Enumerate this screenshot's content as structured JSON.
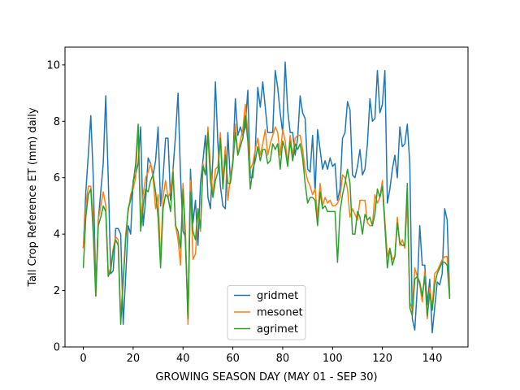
{
  "chart_data": {
    "type": "line",
    "xlabel": "GROWING SEASON DAY (MAY 01 - SEP 30)",
    "ylabel": "Tall Crop Reference ET (mm) daily",
    "x": [
      0,
      1,
      2,
      3,
      4,
      5,
      6,
      7,
      8,
      9,
      10,
      11,
      12,
      13,
      14,
      15,
      16,
      17,
      18,
      19,
      20,
      21,
      22,
      23,
      24,
      25,
      26,
      27,
      28,
      29,
      30,
      31,
      32,
      33,
      34,
      35,
      36,
      37,
      38,
      39,
      40,
      41,
      42,
      43,
      44,
      45,
      46,
      47,
      48,
      49,
      50,
      51,
      52,
      53,
      54,
      55,
      56,
      57,
      58,
      59,
      60,
      61,
      62,
      63,
      64,
      65,
      66,
      67,
      68,
      69,
      70,
      71,
      72,
      73,
      74,
      75,
      76,
      77,
      78,
      79,
      80,
      81,
      82,
      83,
      84,
      85,
      86,
      87,
      88,
      89,
      90,
      91,
      92,
      93,
      94,
      95,
      96,
      97,
      98,
      99,
      100,
      101,
      102,
      103,
      104,
      105,
      106,
      107,
      108,
      109,
      110,
      111,
      112,
      113,
      114,
      115,
      116,
      117,
      118,
      119,
      120,
      121,
      122,
      123,
      124,
      125,
      126,
      127,
      128,
      129,
      130,
      131,
      132,
      133,
      134,
      135,
      136,
      137,
      138,
      139,
      140,
      141,
      142,
      143,
      144,
      145,
      146,
      147
    ],
    "series": [
      {
        "name": "gridmet",
        "color": "#1f77b4",
        "values": [
          3.5,
          5.5,
          6.8,
          8.2,
          6.0,
          2.0,
          4.5,
          5.5,
          6.5,
          8.9,
          6.0,
          2.6,
          2.7,
          4.2,
          4.2,
          4.0,
          0.8,
          2.5,
          4.3,
          4.0,
          5.9,
          6.1,
          6.5,
          7.8,
          4.3,
          5.2,
          6.7,
          6.5,
          6.1,
          6.6,
          7.8,
          5.0,
          6.0,
          7.4,
          7.4,
          5.2,
          6.3,
          7.5,
          9.0,
          6.1,
          4.1,
          3.9,
          1.0,
          6.3,
          4.4,
          5.2,
          3.6,
          5.8,
          6.6,
          7.5,
          5.3,
          4.9,
          6.7,
          9.4,
          7.2,
          5.7,
          5.0,
          4.9,
          7.6,
          5.9,
          6.6,
          8.8,
          7.5,
          7.8,
          7.5,
          7.8,
          9.1,
          6.0,
          6.0,
          7.0,
          9.2,
          8.5,
          9.4,
          8.5,
          7.6,
          7.6,
          7.6,
          9.8,
          9.2,
          8.3,
          7.6,
          10.1,
          8.4,
          7.6,
          7.6,
          6.8,
          7.4,
          8.9,
          8.3,
          8.1,
          6.3,
          6.2,
          7.5,
          5.5,
          7.7,
          7.0,
          6.3,
          6.6,
          6.3,
          6.7,
          6.4,
          6.5,
          5.2,
          5.6,
          7.4,
          7.6,
          8.7,
          8.4,
          6.1,
          6.0,
          6.4,
          7.0,
          6.1,
          6.3,
          7.2,
          8.8,
          8.0,
          8.1,
          9.8,
          8.3,
          8.6,
          9.8,
          5.1,
          5.6,
          6.3,
          6.8,
          6.0,
          7.8,
          7.1,
          7.2,
          7.9,
          6.5,
          1.0,
          0.6,
          2.1,
          4.3,
          2.9,
          2.9,
          1.5,
          2.4,
          0.5,
          1.4,
          2.3,
          2.2,
          2.6,
          4.9,
          4.5,
          1.8
        ]
      },
      {
        "name": "mesonet",
        "color": "#ff7f0e",
        "values": [
          3.5,
          5.0,
          5.7,
          5.7,
          4.5,
          1.8,
          4.5,
          5.0,
          5.5,
          5.0,
          2.6,
          2.8,
          3.5,
          3.9,
          3.8,
          1.0,
          2.4,
          4.0,
          4.8,
          5.4,
          5.6,
          6.0,
          7.8,
          4.5,
          5.4,
          6.0,
          6.2,
          6.5,
          6.0,
          4.9,
          5.4,
          3.0,
          5.3,
          5.9,
          5.3,
          5.5,
          6.3,
          4.3,
          3.8,
          2.9,
          5.8,
          4.0,
          0.8,
          5.9,
          3.1,
          3.3,
          4.8,
          4.1,
          6.5,
          6.1,
          7.8,
          6.4,
          5.4,
          6.3,
          6.4,
          7.6,
          5.9,
          7.1,
          5.2,
          6.0,
          6.6,
          7.9,
          6.8,
          7.3,
          7.7,
          8.6,
          7.6,
          6.3,
          6.5,
          7.0,
          7.4,
          6.8,
          7.2,
          7.7,
          6.8,
          7.2,
          7.5,
          7.8,
          7.6,
          6.8,
          7.7,
          7.3,
          6.5,
          7.5,
          6.8,
          7.4,
          7.5,
          7.5,
          7.0,
          6.3,
          5.9,
          5.7,
          5.4,
          5.6,
          4.6,
          5.8,
          5.0,
          5.3,
          5.1,
          5.2,
          5.0,
          5.0,
          5.1,
          5.3,
          6.1,
          6.0,
          5.6,
          4.6,
          4.9,
          4.7,
          4.5,
          5.2,
          5.2,
          5.2,
          4.4,
          4.3,
          4.3,
          5.4,
          5.1,
          5.3,
          5.9,
          4.5,
          3.2,
          3.5,
          3.1,
          3.2,
          4.6,
          3.6,
          3.8,
          3.5,
          5.2,
          1.6,
          1.3,
          2.8,
          2.5,
          2.2,
          1.6,
          2.7,
          1.0,
          2.1,
          1.4,
          2.6,
          2.7,
          2.9,
          3.1,
          3.2,
          3.2,
          1.8
        ]
      },
      {
        "name": "agrimet",
        "color": "#2ca02c",
        "values": [
          2.8,
          4.6,
          5.4,
          5.6,
          4.0,
          1.8,
          4.3,
          4.6,
          5.0,
          4.8,
          2.5,
          2.7,
          3.4,
          3.8,
          3.6,
          0.8,
          2.3,
          3.8,
          4.9,
          5.2,
          5.8,
          6.5,
          7.9,
          4.1,
          5.0,
          5.6,
          5.5,
          5.9,
          6.1,
          5.5,
          4.6,
          2.8,
          4.9,
          5.4,
          5.3,
          4.8,
          6.2,
          4.3,
          4.1,
          3.5,
          5.6,
          3.6,
          1.0,
          5.5,
          4.1,
          3.8,
          4.9,
          4.2,
          6.4,
          6.1,
          7.6,
          5.9,
          5.3,
          5.9,
          6.2,
          7.4,
          5.6,
          6.8,
          5.8,
          5.8,
          6.5,
          7.6,
          6.8,
          7.1,
          7.4,
          8.2,
          7.3,
          5.6,
          6.3,
          6.6,
          7.1,
          6.6,
          7.0,
          7.0,
          6.5,
          6.6,
          7.2,
          7.0,
          7.2,
          6.3,
          7.3,
          7.0,
          6.4,
          7.3,
          6.6,
          7.2,
          7.0,
          7.2,
          6.7,
          5.8,
          5.1,
          5.3,
          5.3,
          5.2,
          4.3,
          5.5,
          4.9,
          5.0,
          4.8,
          4.8,
          4.8,
          4.8,
          3.0,
          4.8,
          5.4,
          5.8,
          6.3,
          5.8,
          4.0,
          4.0,
          4.8,
          4.6,
          4.0,
          4.7,
          4.5,
          4.6,
          4.3,
          4.7,
          5.6,
          5.3,
          5.7,
          4.3,
          2.8,
          3.5,
          2.9,
          3.2,
          4.4,
          3.7,
          3.6,
          3.6,
          5.8,
          1.4,
          1.1,
          2.4,
          2.5,
          2.3,
          1.8,
          2.5,
          1.1,
          1.9,
          1.3,
          2.2,
          2.6,
          2.8,
          3.0,
          3.0,
          2.9,
          1.7
        ]
      }
    ],
    "xlim": [
      -7.35,
      154.35
    ],
    "xticks": [
      0,
      20,
      40,
      60,
      80,
      100,
      120,
      140
    ],
    "ylim": [
      0,
      10.63
    ],
    "yticks": [
      0,
      2,
      4,
      6,
      8,
      10
    ],
    "legend": "lower center"
  }
}
